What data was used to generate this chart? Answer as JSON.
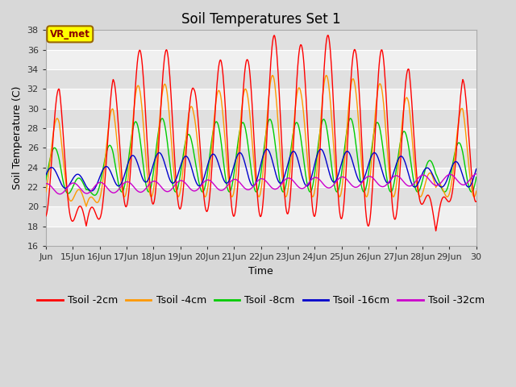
{
  "title": "Soil Temperatures Set 1",
  "xlabel": "Time",
  "ylabel": "Soil Temperature (C)",
  "ylim": [
    16,
    38
  ],
  "yticks": [
    16,
    18,
    20,
    22,
    24,
    26,
    28,
    30,
    32,
    34,
    36,
    38
  ],
  "x_start_day": 14,
  "x_end_day": 30,
  "x_tick_days": [
    14,
    15,
    16,
    17,
    18,
    19,
    20,
    21,
    22,
    23,
    24,
    25,
    26,
    27,
    28,
    29,
    30
  ],
  "x_tick_labels": [
    "Jun",
    "15Jun",
    "16Jun",
    "17Jun",
    "18Jun",
    "19Jun",
    "20Jun",
    "21Jun",
    "22Jun",
    "23Jun",
    "24Jun",
    "25Jun",
    "26Jun",
    "27Jun",
    "28Jun",
    "29Jun",
    "30"
  ],
  "series_colors": [
    "#ff0000",
    "#ff9900",
    "#00cc00",
    "#0000cc",
    "#cc00cc"
  ],
  "series_labels": [
    "Tsoil -2cm",
    "Tsoil -4cm",
    "Tsoil -8cm",
    "Tsoil -16cm",
    "Tsoil -32cm"
  ],
  "background_color": "#d8d8d8",
  "plot_bg_light": "#f0f0f0",
  "plot_bg_dark": "#e0e0e0",
  "grid_color": "#ffffff",
  "annotation_text": "VR_met",
  "annotation_box_color": "#ffff00",
  "annotation_text_color": "#880000",
  "title_fontsize": 12,
  "axis_label_fontsize": 9,
  "tick_fontsize": 8,
  "legend_fontsize": 9
}
